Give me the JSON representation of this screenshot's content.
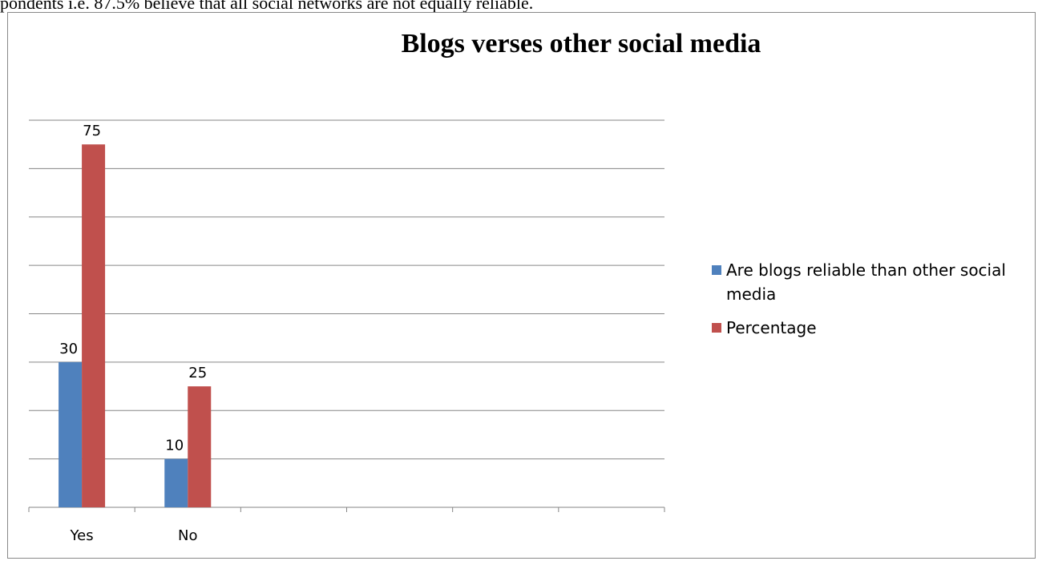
{
  "document": {
    "top_text": "pondents i.e. 87.5% believe that all social networks are not equally reliable."
  },
  "chart_data": {
    "type": "bar",
    "title": "Blogs verses other social media",
    "categories": [
      "Yes",
      "No",
      "",
      "",
      "",
      ""
    ],
    "series": [
      {
        "name": "Are blogs reliable than other social media",
        "values": [
          30,
          10,
          null,
          null,
          null,
          null
        ],
        "color": "#4f81bd"
      },
      {
        "name": "Percentage",
        "values": [
          75,
          25,
          null,
          null,
          null,
          null
        ],
        "color": "#c0504d"
      }
    ],
    "ylim": [
      0,
      80
    ],
    "grid": true,
    "data_labels": true,
    "legend_position": "right"
  }
}
